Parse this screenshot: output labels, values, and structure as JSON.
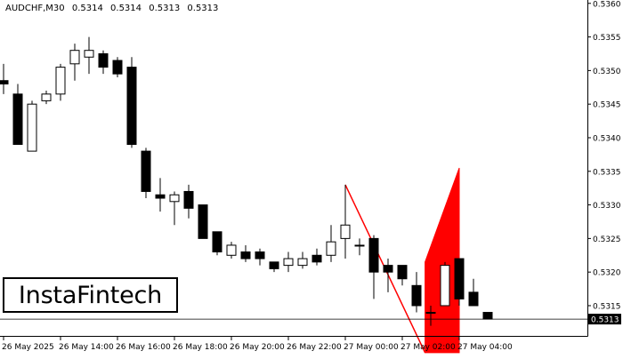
{
  "header": {
    "symbol": "AUDCHF,M30",
    "ohlc": [
      "0.5314",
      "0.5314",
      "0.5313",
      "0.5313"
    ]
  },
  "logo": {
    "text": "InstaFintech"
  },
  "colors": {
    "bull_fill": "#ffffff",
    "bear_fill": "#000000",
    "candle_outline": "#000000",
    "pattern": "#ff0000",
    "axis": "#000000"
  },
  "chart_data": {
    "type": "candlestick",
    "title": "AUDCHF,M30",
    "y_ticks": [
      "0.5315",
      "0.5320",
      "0.5325",
      "0.5330",
      "0.5335",
      "0.5340",
      "0.5345",
      "0.5350",
      "0.5355",
      "0.5360"
    ],
    "ylim": [
      0.53105,
      0.53605
    ],
    "x_ticks": [
      {
        "label": "26 May 2025",
        "bar": 0
      },
      {
        "label": "26 May 14:00",
        "bar": 4
      },
      {
        "label": "26 May 16:00",
        "bar": 8
      },
      {
        "label": "26 May 18:00",
        "bar": 12
      },
      {
        "label": "26 May 20:00",
        "bar": 16
      },
      {
        "label": "26 May 22:00",
        "bar": 20
      },
      {
        "label": "27 May 00:00",
        "bar": 24
      },
      {
        "label": "27 May 02:00",
        "bar": 28
      },
      {
        "label": "27 May 04:00",
        "bar": 32
      }
    ],
    "current_price": "0.5313",
    "candles": [
      {
        "o": 0.53485,
        "h": 0.5351,
        "l": 0.53465,
        "c": 0.5348
      },
      {
        "o": 0.53465,
        "h": 0.5348,
        "l": 0.5339,
        "c": 0.5339
      },
      {
        "o": 0.5338,
        "h": 0.53455,
        "l": 0.5338,
        "c": 0.5345
      },
      {
        "o": 0.53455,
        "h": 0.5347,
        "l": 0.5345,
        "c": 0.53465
      },
      {
        "o": 0.53465,
        "h": 0.5351,
        "l": 0.53455,
        "c": 0.53505
      },
      {
        "o": 0.5351,
        "h": 0.5354,
        "l": 0.53485,
        "c": 0.5353
      },
      {
        "o": 0.5352,
        "h": 0.5355,
        "l": 0.53495,
        "c": 0.5353
      },
      {
        "o": 0.53525,
        "h": 0.5353,
        "l": 0.53495,
        "c": 0.53505
      },
      {
        "o": 0.53515,
        "h": 0.5352,
        "l": 0.5349,
        "c": 0.53495
      },
      {
        "o": 0.53505,
        "h": 0.5352,
        "l": 0.53385,
        "c": 0.5339
      },
      {
        "o": 0.5338,
        "h": 0.53385,
        "l": 0.5331,
        "c": 0.5332
      },
      {
        "o": 0.53315,
        "h": 0.5334,
        "l": 0.5329,
        "c": 0.5331
      },
      {
        "o": 0.53305,
        "h": 0.5332,
        "l": 0.5327,
        "c": 0.53315
      },
      {
        "o": 0.5332,
        "h": 0.5333,
        "l": 0.5328,
        "c": 0.53295
      },
      {
        "o": 0.533,
        "h": 0.533,
        "l": 0.5325,
        "c": 0.5325
      },
      {
        "o": 0.5326,
        "h": 0.5326,
        "l": 0.53225,
        "c": 0.5323
      },
      {
        "o": 0.53225,
        "h": 0.53245,
        "l": 0.5322,
        "c": 0.5324
      },
      {
        "o": 0.5323,
        "h": 0.5324,
        "l": 0.53215,
        "c": 0.5322
      },
      {
        "o": 0.5323,
        "h": 0.53235,
        "l": 0.5321,
        "c": 0.5322
      },
      {
        "o": 0.53215,
        "h": 0.53215,
        "l": 0.532,
        "c": 0.53205
      },
      {
        "o": 0.5321,
        "h": 0.5323,
        "l": 0.532,
        "c": 0.5322
      },
      {
        "o": 0.5321,
        "h": 0.5323,
        "l": 0.53205,
        "c": 0.5322
      },
      {
        "o": 0.53225,
        "h": 0.53235,
        "l": 0.5321,
        "c": 0.53215
      },
      {
        "o": 0.53225,
        "h": 0.5327,
        "l": 0.53215,
        "c": 0.53245
      },
      {
        "o": 0.5325,
        "h": 0.5333,
        "l": 0.5322,
        "c": 0.5327
      },
      {
        "o": 0.5324,
        "h": 0.5325,
        "l": 0.53225,
        "c": 0.5324
      },
      {
        "o": 0.5325,
        "h": 0.53255,
        "l": 0.5316,
        "c": 0.532
      },
      {
        "o": 0.5321,
        "h": 0.5322,
        "l": 0.5317,
        "c": 0.532
      },
      {
        "o": 0.5321,
        "h": 0.5321,
        "l": 0.5318,
        "c": 0.5319
      },
      {
        "o": 0.5318,
        "h": 0.532,
        "l": 0.5314,
        "c": 0.5315
      },
      {
        "o": 0.5314,
        "h": 0.5315,
        "l": 0.5312,
        "c": 0.5314
      },
      {
        "o": 0.5315,
        "h": 0.53215,
        "l": 0.5315,
        "c": 0.5321
      },
      {
        "o": 0.5322,
        "h": 0.5322,
        "l": 0.5315,
        "c": 0.5316
      },
      {
        "o": 0.5317,
        "h": 0.5319,
        "l": 0.5315,
        "c": 0.5315
      },
      {
        "o": 0.5314,
        "h": 0.5314,
        "l": 0.5313,
        "c": 0.5313
      }
    ],
    "patterns": [
      {
        "kind": "pole-line",
        "from": {
          "bar": 24,
          "price": 0.5333
        },
        "to": {
          "bar": 29.6,
          "price": 0.5308
        }
      },
      {
        "kind": "flag",
        "points": [
          {
            "bar": 29.6,
            "price": 0.5308
          },
          {
            "bar": 29.6,
            "price": 0.53215
          },
          {
            "bar": 32.0,
            "price": 0.53355
          },
          {
            "bar": 32.0,
            "price": 0.5308
          }
        ]
      }
    ]
  }
}
